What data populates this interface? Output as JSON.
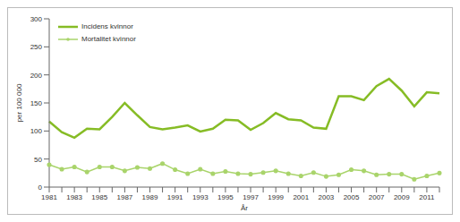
{
  "chart_data": {
    "type": "line",
    "x_label": "År",
    "y_label": "per 100 000",
    "categories": [
      "1981",
      null,
      "1983",
      null,
      "1985",
      null,
      "1987",
      null,
      "1989",
      null,
      "1991",
      null,
      "1993",
      null,
      "1995",
      null,
      "1997",
      null,
      "1999",
      null,
      "2001",
      null,
      "2003",
      null,
      "2005",
      null,
      "2007",
      null,
      "2009",
      null,
      "2011",
      null
    ],
    "series": [
      {
        "name": "Incidens kvinnor",
        "color": "#86bc25",
        "marker": "none",
        "line_style": "solid",
        "values": [
          117,
          98,
          88,
          104,
          103,
          125,
          150,
          128,
          107,
          103,
          106,
          110,
          99,
          104,
          120,
          119,
          102,
          114,
          132,
          121,
          119,
          106,
          104,
          162,
          162,
          155,
          180,
          193,
          172,
          144,
          169,
          167
        ]
      },
      {
        "name": "Mortalitet kvinnor",
        "color": "#a9d46b",
        "marker": "circle",
        "line_style": "solid",
        "values": [
          40,
          32,
          36,
          27,
          36,
          36,
          29,
          35,
          33,
          42,
          31,
          24,
          32,
          24,
          28,
          24,
          23,
          26,
          29,
          24,
          20,
          26,
          19,
          22,
          31,
          29,
          22,
          23,
          23,
          14,
          20,
          25
        ]
      }
    ],
    "ylim": [
      0,
      300
    ],
    "yticks": [
      0,
      50,
      100,
      150,
      200,
      250,
      300
    ],
    "grid": false,
    "legend": "top-left"
  }
}
